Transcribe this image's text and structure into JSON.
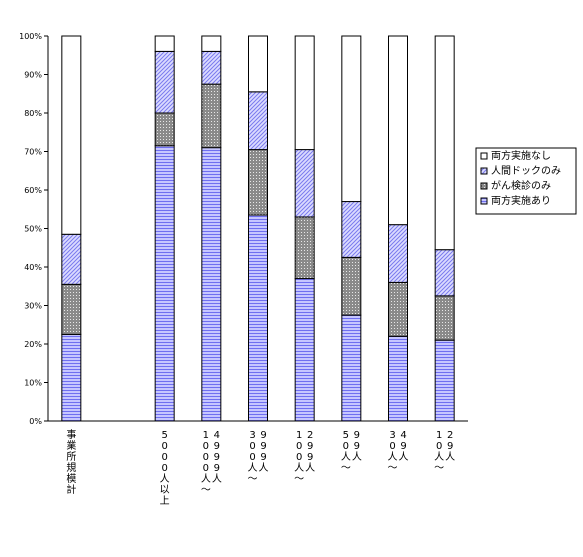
{
  "chart_data": {
    "type": "bar",
    "stacked": true,
    "percent": true,
    "title": "",
    "xlabel": "",
    "ylabel": "",
    "ylim": [
      0,
      100
    ],
    "yticks": [
      "0%",
      "10%",
      "20%",
      "30%",
      "40%",
      "50%",
      "60%",
      "70%",
      "80%",
      "90%",
      "100%"
    ],
    "categories": [
      "事業所規模計",
      "",
      "5000人以上",
      "1000人〜4999人",
      "300人〜999人",
      "100人〜299人",
      "50人〜99人",
      "30人〜49人",
      "10人〜29人"
    ],
    "category_lines": [
      [
        [
          "事",
          "業",
          "所",
          "規",
          "模",
          "計"
        ]
      ],
      [],
      [
        [
          "5",
          "0",
          "0",
          "0",
          "人",
          "以",
          "上"
        ]
      ],
      [
        [
          "1",
          "0",
          "0",
          "0",
          "人",
          "〜"
        ],
        [
          "4",
          "9",
          "9",
          "9",
          "人"
        ]
      ],
      [
        [
          "3",
          "0",
          "0",
          "人",
          "〜"
        ],
        [
          "9",
          "9",
          "9",
          "人"
        ]
      ],
      [
        [
          "1",
          "0",
          "0",
          "人",
          "〜"
        ],
        [
          "2",
          "9",
          "9",
          "人"
        ]
      ],
      [
        [
          "5",
          "0",
          "人",
          "〜"
        ],
        [
          "9",
          "9",
          "人"
        ]
      ],
      [
        [
          "3",
          "0",
          "人",
          "〜"
        ],
        [
          "4",
          "9",
          "人"
        ]
      ],
      [
        [
          "1",
          "0",
          "人",
          "〜"
        ],
        [
          "2",
          "9",
          "人"
        ]
      ]
    ],
    "series": [
      {
        "name": "両方実施あり",
        "color": "#9999ff",
        "pattern": "horizontal-lines",
        "values": [
          22.5,
          null,
          71.5,
          71.0,
          53.5,
          37.0,
          27.5,
          22.0,
          21.0
        ]
      },
      {
        "name": "がん検診のみ",
        "color": "#808080",
        "pattern": "dots",
        "values": [
          13.0,
          null,
          8.5,
          16.5,
          17.0,
          16.0,
          15.0,
          14.0,
          11.5
        ]
      },
      {
        "name": "人間ドックのみ",
        "color": "#9999ff",
        "pattern": "diagonal-lines",
        "values": [
          13.0,
          null,
          16.0,
          8.5,
          15.0,
          17.5,
          14.5,
          15.0,
          12.0
        ]
      },
      {
        "name": "両方実施なし",
        "color": "#ffffff",
        "pattern": "solid",
        "values": [
          51.5,
          null,
          4.0,
          4.0,
          14.5,
          29.5,
          43.0,
          49.0,
          55.5
        ]
      }
    ],
    "legend": {
      "placement": "right",
      "entries": [
        "両方実施なし",
        "人間ドックのみ",
        "がん検診のみ",
        "両方実施あり"
      ]
    },
    "grid": false
  }
}
